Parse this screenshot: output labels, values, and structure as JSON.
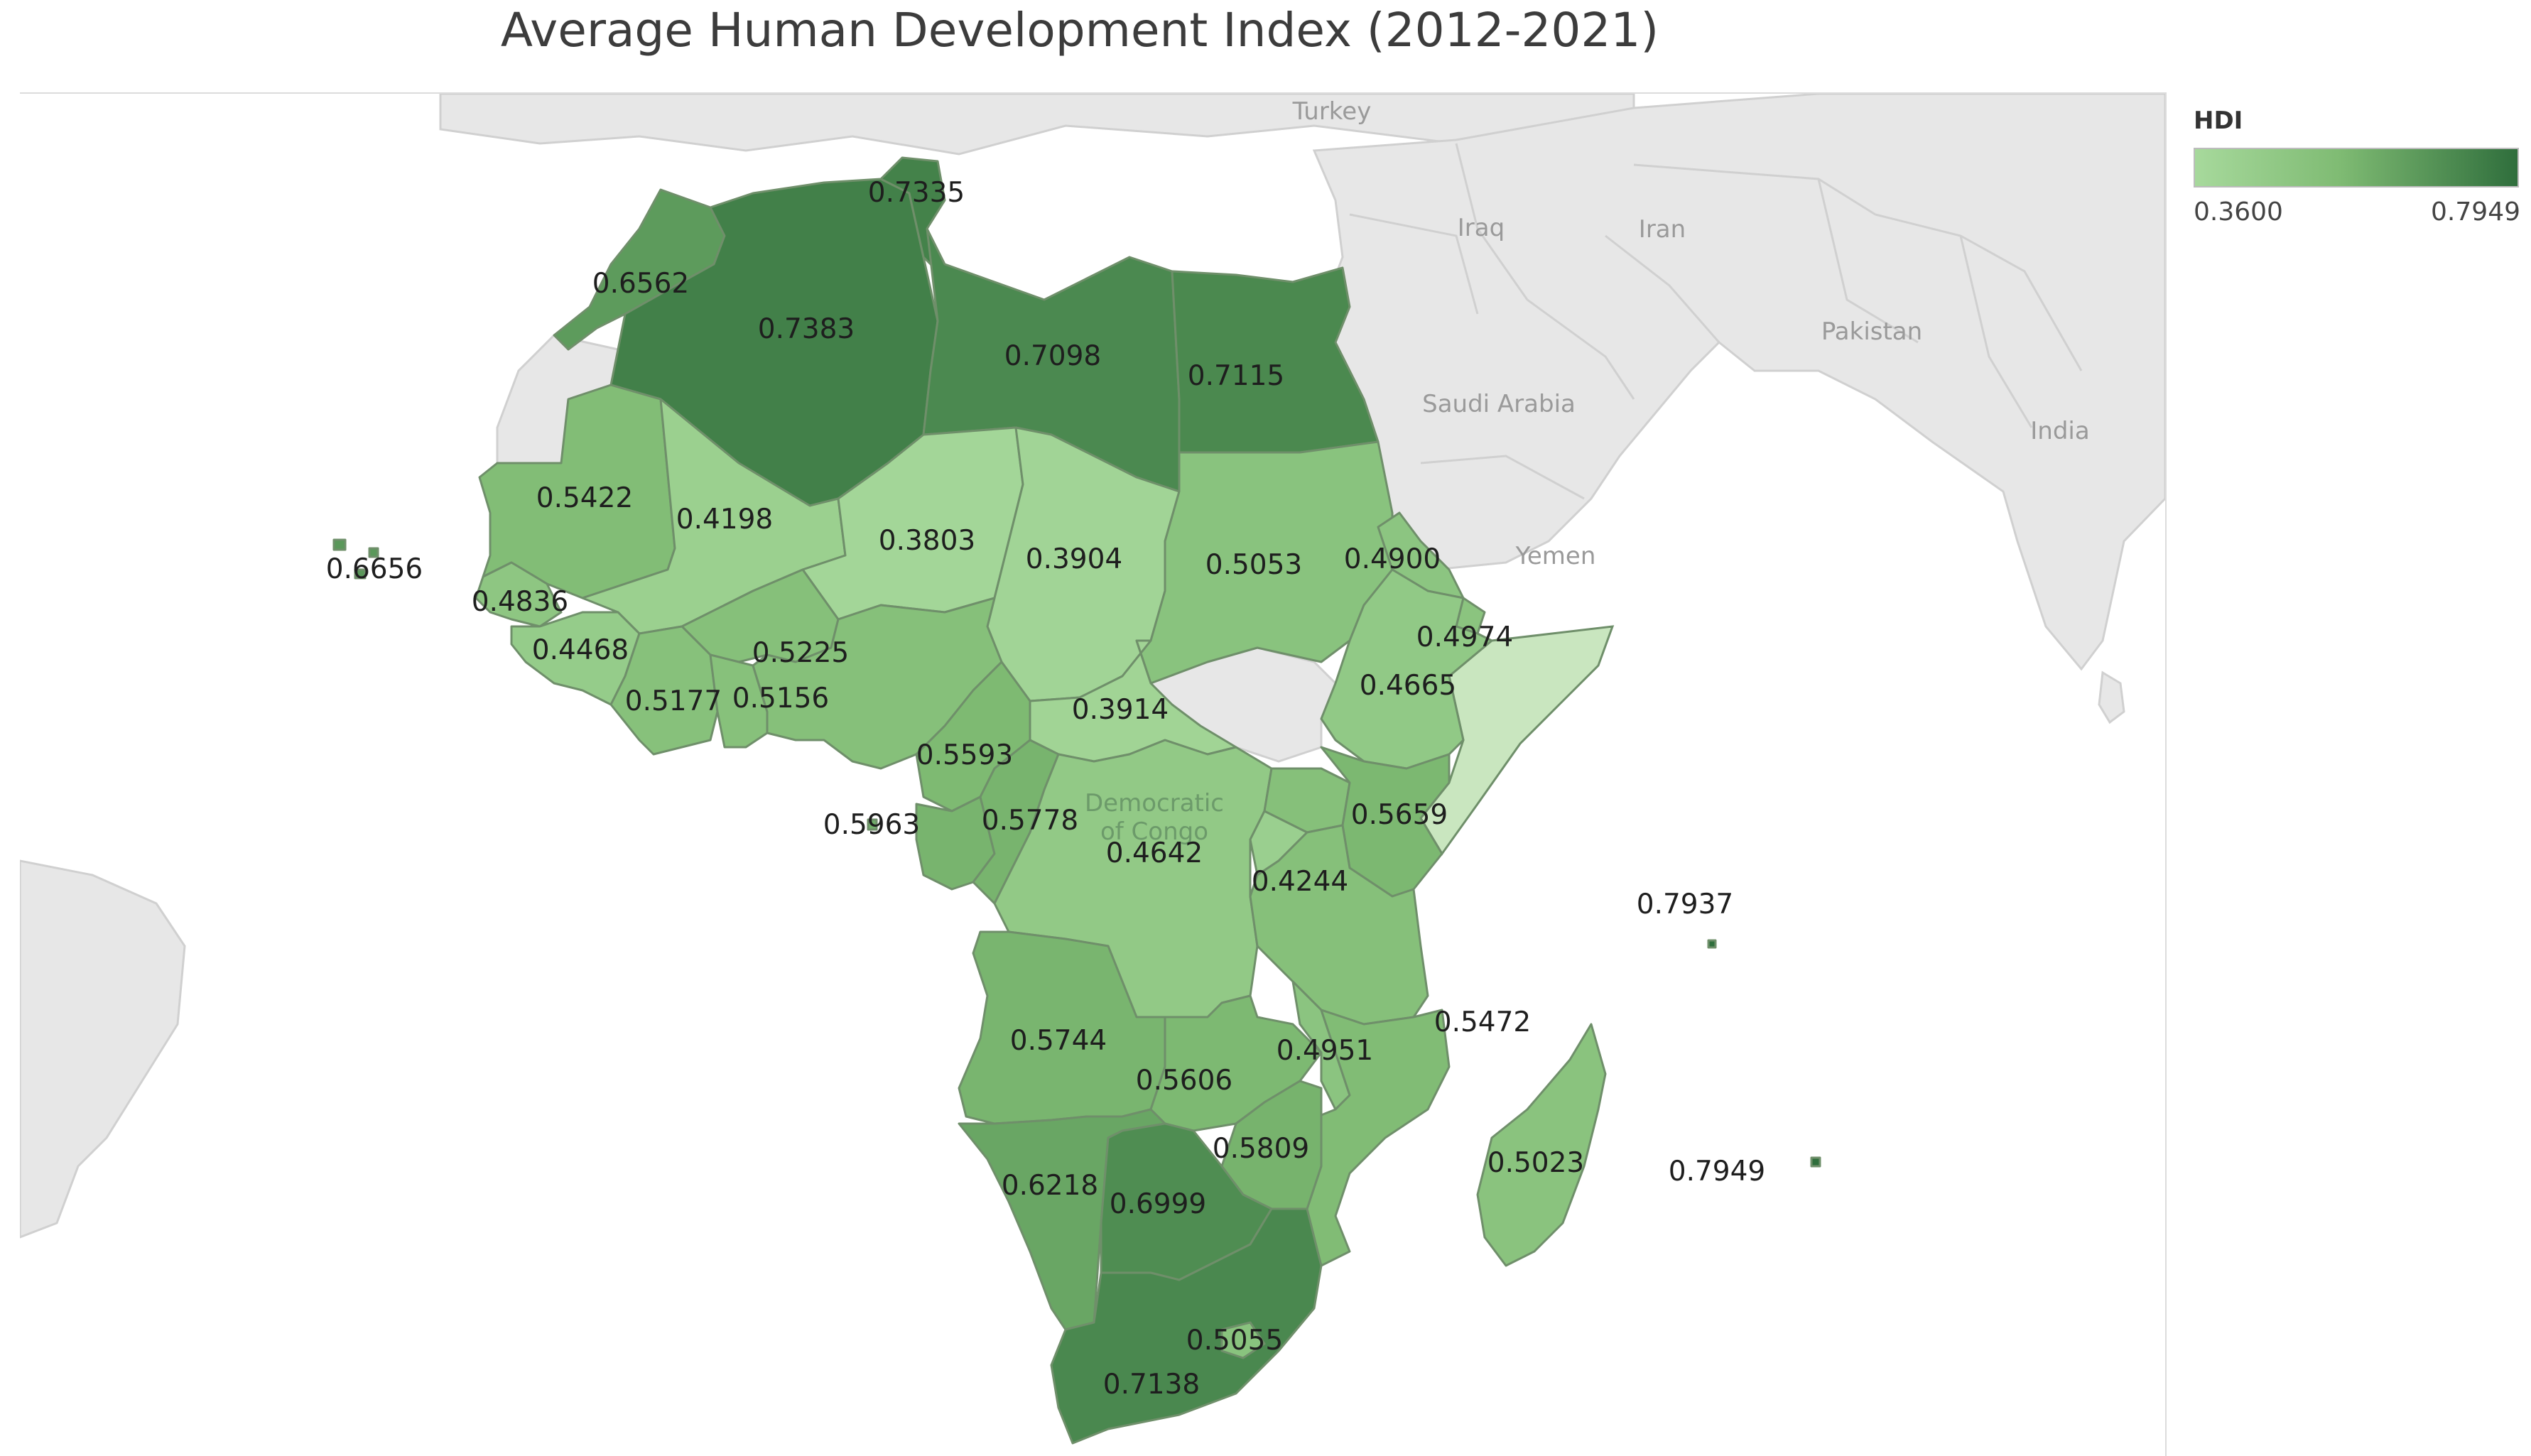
{
  "title": "Average Human Development Index (2012-2021)",
  "legend": {
    "title": "HDI",
    "min": "0.3600",
    "max": "0.7949",
    "min_value": 0.36,
    "max_value": 0.7949,
    "color_low": "#a7d99c",
    "color_high": "#2f6e3c"
  },
  "background_labels": {
    "turkey": "Turkey",
    "iraq": "Iraq",
    "iran": "Iran",
    "pakistan": "Pakistan",
    "saudi_arabia": "Saudi Arabia",
    "india": "India",
    "yemen": "Yemen",
    "drc_line1": "Democratic",
    "drc_line2": "of Congo"
  },
  "chart_data": {
    "type": "choropleth",
    "title": "Average Human Development Index (2012-2021)",
    "color_scale": {
      "label": "HDI",
      "min": 0.36,
      "max": 0.7949
    },
    "values": {
      "tunisia": 0.7335,
      "morocco": 0.6562,
      "algeria": 0.7383,
      "libya": 0.7098,
      "egypt": 0.7115,
      "mauritania": 0.5422,
      "mali": 0.4198,
      "niger": 0.3803,
      "chad": 0.3904,
      "sudan": 0.5053,
      "eritrea": 0.49,
      "cabo_verde": 0.6656,
      "senegal": 0.4836,
      "guinea": 0.4468,
      "burkina_faso": 0.5225,
      "ghana": 0.5177,
      "togo": 0.5156,
      "djibouti": 0.4974,
      "ethiopia": 0.4665,
      "car": 0.3914,
      "cameroon": 0.5593,
      "kenya": 0.5659,
      "sao_tome": 0.5963,
      "gabon": 0.5778,
      "drc": 0.4642,
      "burundi": 0.4244,
      "mauritius": 0.7937,
      "angola": 0.5744,
      "mozambique": 0.5472,
      "zambia": 0.5606,
      "malawi": 0.4951,
      "madagascar": 0.5023,
      "seychelles": 0.7949,
      "zimbabwe": 0.5809,
      "namibia": 0.6218,
      "botswana": 0.6999,
      "lesotho": 0.5055,
      "south_africa": 0.7138
    }
  }
}
